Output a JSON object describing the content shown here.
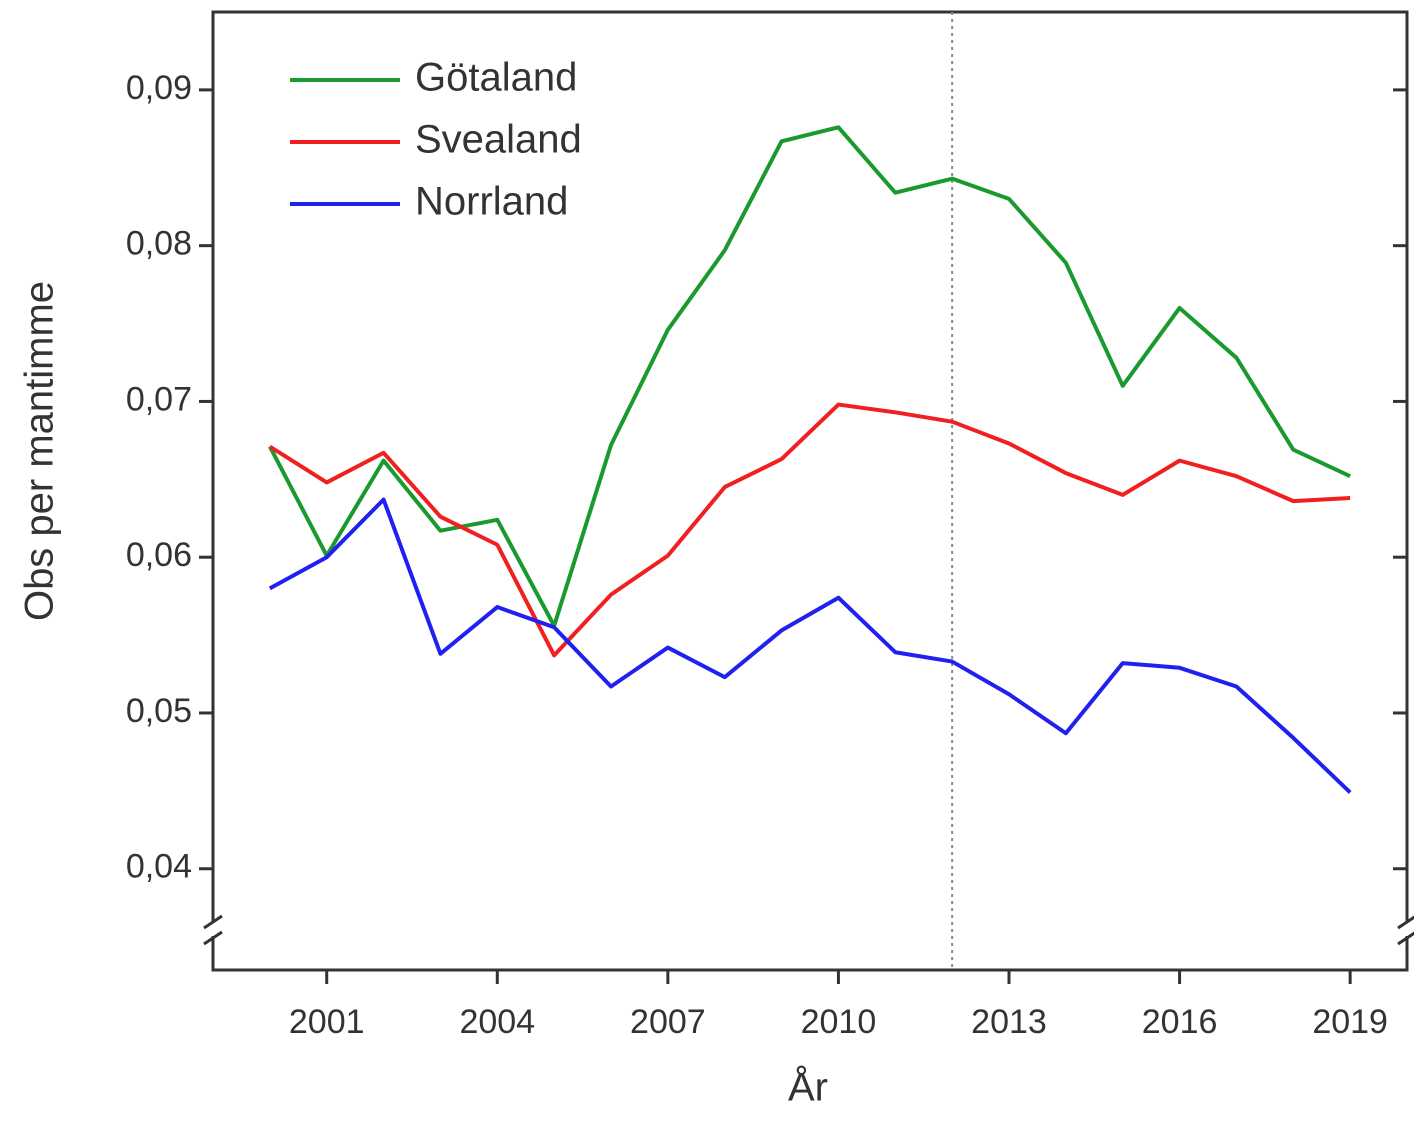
{
  "chart_data": {
    "type": "line",
    "xlabel": "År",
    "ylabel": "Obs per mantimme",
    "x": [
      2000,
      2001,
      2002,
      2003,
      2004,
      2005,
      2006,
      2007,
      2008,
      2009,
      2010,
      2011,
      2012,
      2013,
      2014,
      2015,
      2016,
      2017,
      2018,
      2019
    ],
    "series": [
      {
        "name": "Götaland",
        "color": "#1a9a2e",
        "values": [
          0.0671,
          0.0601,
          0.0662,
          0.0617,
          0.0624,
          0.0556,
          0.0672,
          0.0746,
          0.0797,
          0.0867,
          0.0876,
          0.0834,
          0.0843,
          0.083,
          0.0789,
          0.071,
          0.076,
          0.0728,
          0.0669,
          0.0652
        ]
      },
      {
        "name": "Svealand",
        "color": "#f02020",
        "values": [
          0.0671,
          0.0648,
          0.0667,
          0.0626,
          0.0608,
          0.0537,
          0.0576,
          0.0601,
          0.0645,
          0.0663,
          0.0698,
          0.0693,
          0.0687,
          0.0673,
          0.0654,
          0.064,
          0.0662,
          0.0652,
          0.0636,
          0.0638
        ]
      },
      {
        "name": "Norrland",
        "color": "#2020f0",
        "values": [
          0.058,
          0.06,
          0.0637,
          0.0538,
          0.0568,
          0.0555,
          0.0517,
          0.0542,
          0.0523,
          0.0553,
          0.0574,
          0.0539,
          0.0533,
          0.0512,
          0.0487,
          0.0532,
          0.0529,
          0.0517,
          0.0484,
          0.0449
        ]
      }
    ],
    "xlim": [
      1999,
      2020
    ],
    "xticks": [
      2001,
      2004,
      2007,
      2010,
      2013,
      2016,
      2019
    ],
    "ylim": [
      0.0335,
      0.095
    ],
    "yticks": [
      {
        "value": 0.04,
        "label": "0,04"
      },
      {
        "value": 0.05,
        "label": "0,05"
      },
      {
        "value": 0.06,
        "label": "0,06"
      },
      {
        "value": 0.07,
        "label": "0,07"
      },
      {
        "value": 0.08,
        "label": "0,08"
      },
      {
        "value": 0.09,
        "label": "0,09"
      }
    ],
    "vline": 2012,
    "legend": "upper-left"
  }
}
